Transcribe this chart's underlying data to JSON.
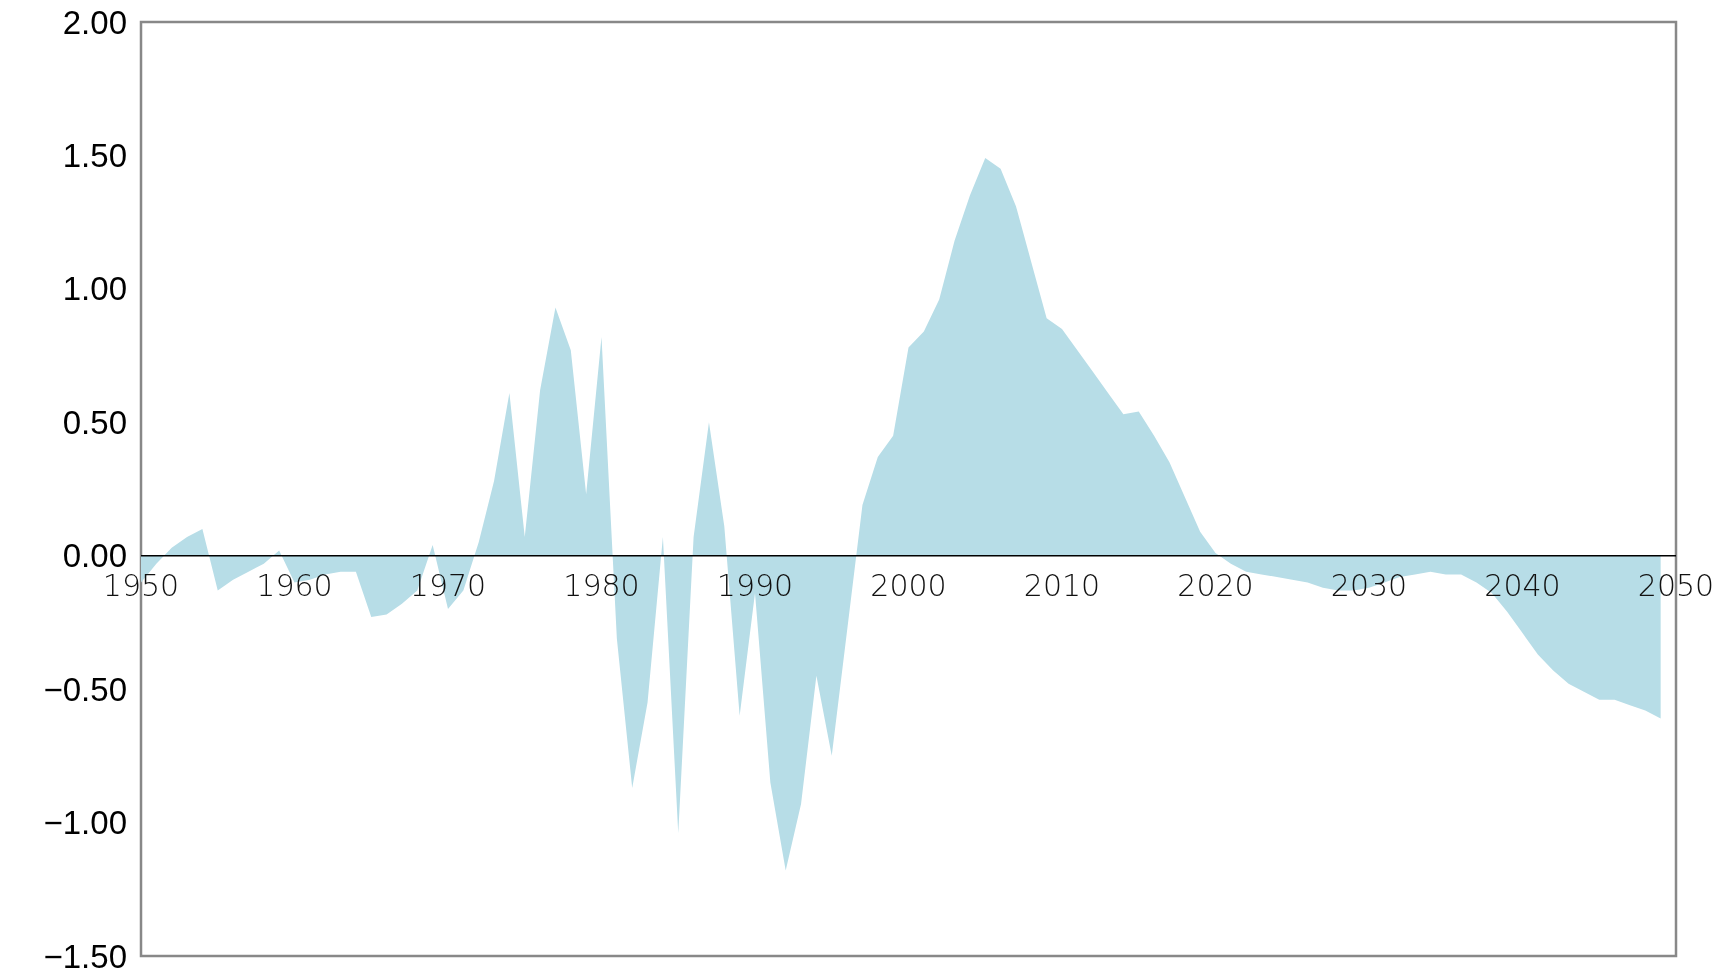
{
  "chart_data": {
    "type": "area",
    "color": "#b7dde7",
    "x": [
      1950,
      1951,
      1952,
      1953,
      1954,
      1955,
      1956,
      1957,
      1958,
      1959,
      1960,
      1961,
      1962,
      1963,
      1964,
      1965,
      1966,
      1967,
      1968,
      1969,
      1970,
      1971,
      1972,
      1973,
      1974,
      1975,
      1976,
      1977,
      1978,
      1979,
      1980,
      1981,
      1982,
      1983,
      1984,
      1985,
      1986,
      1987,
      1988,
      1989,
      1990,
      1991,
      1992,
      1993,
      1994,
      1995,
      1996,
      1997,
      1998,
      1999,
      2000,
      2001,
      2002,
      2003,
      2004,
      2005,
      2006,
      2007,
      2008,
      2009,
      2010,
      2011,
      2012,
      2013,
      2014,
      2015,
      2016,
      2017,
      2018,
      2019,
      2020,
      2021,
      2022,
      2023,
      2024,
      2025,
      2026,
      2027,
      2028,
      2029,
      2030,
      2031,
      2032,
      2033,
      2034,
      2035,
      2036,
      2037,
      2038,
      2039,
      2040,
      2041,
      2042,
      2043,
      2044,
      2045,
      2046,
      2047,
      2048,
      2049
    ],
    "values": [
      -0.1,
      -0.03,
      0.03,
      0.07,
      0.1,
      -0.13,
      -0.09,
      -0.06,
      -0.03,
      0.02,
      -0.1,
      -0.09,
      -0.07,
      -0.06,
      -0.06,
      -0.23,
      -0.22,
      -0.18,
      -0.13,
      0.04,
      -0.2,
      -0.13,
      0.05,
      0.28,
      0.61,
      0.07,
      0.62,
      0.93,
      0.77,
      0.23,
      0.82,
      -0.31,
      -0.87,
      -0.55,
      0.07,
      -1.04,
      0.07,
      0.5,
      0.11,
      -0.6,
      -0.14,
      -0.85,
      -1.18,
      -0.93,
      -0.45,
      -0.75,
      -0.28,
      0.19,
      0.37,
      0.45,
      0.78,
      0.84,
      0.96,
      1.18,
      1.35,
      1.49,
      1.45,
      1.31,
      1.1,
      0.89,
      0.85,
      0.77,
      0.69,
      0.61,
      0.53,
      0.54,
      0.45,
      0.35,
      0.22,
      0.09,
      0.01,
      -0.03,
      -0.06,
      -0.07,
      -0.08,
      -0.09,
      -0.1,
      -0.12,
      -0.13,
      -0.13,
      -0.12,
      -0.1,
      -0.08,
      -0.07,
      -0.06,
      -0.07,
      -0.07,
      -0.1,
      -0.14,
      -0.21,
      -0.29,
      -0.37,
      -0.43,
      -0.48,
      -0.51,
      -0.54,
      -0.54,
      -0.56,
      -0.58,
      -0.61
    ],
    "xlim": [
      1950,
      2050
    ],
    "xticks": [
      1950,
      1960,
      1970,
      1980,
      1990,
      2000,
      2010,
      2020,
      2030,
      2040,
      2050
    ],
    "ylim": [
      -1.5,
      2
    ],
    "yticks": [
      {
        "value": -1.5,
        "label": "−1.50"
      },
      {
        "value": -1,
        "label": "−1.00"
      },
      {
        "value": -0.5,
        "label": "−0.50"
      },
      {
        "value": 0,
        "label": "0.00"
      },
      {
        "value": 0.5,
        "label": "0.50"
      },
      {
        "value": 1,
        "label": "1.00"
      },
      {
        "value": 1.5,
        "label": "1.50"
      },
      {
        "value": 2,
        "label": "2.00"
      }
    ]
  }
}
